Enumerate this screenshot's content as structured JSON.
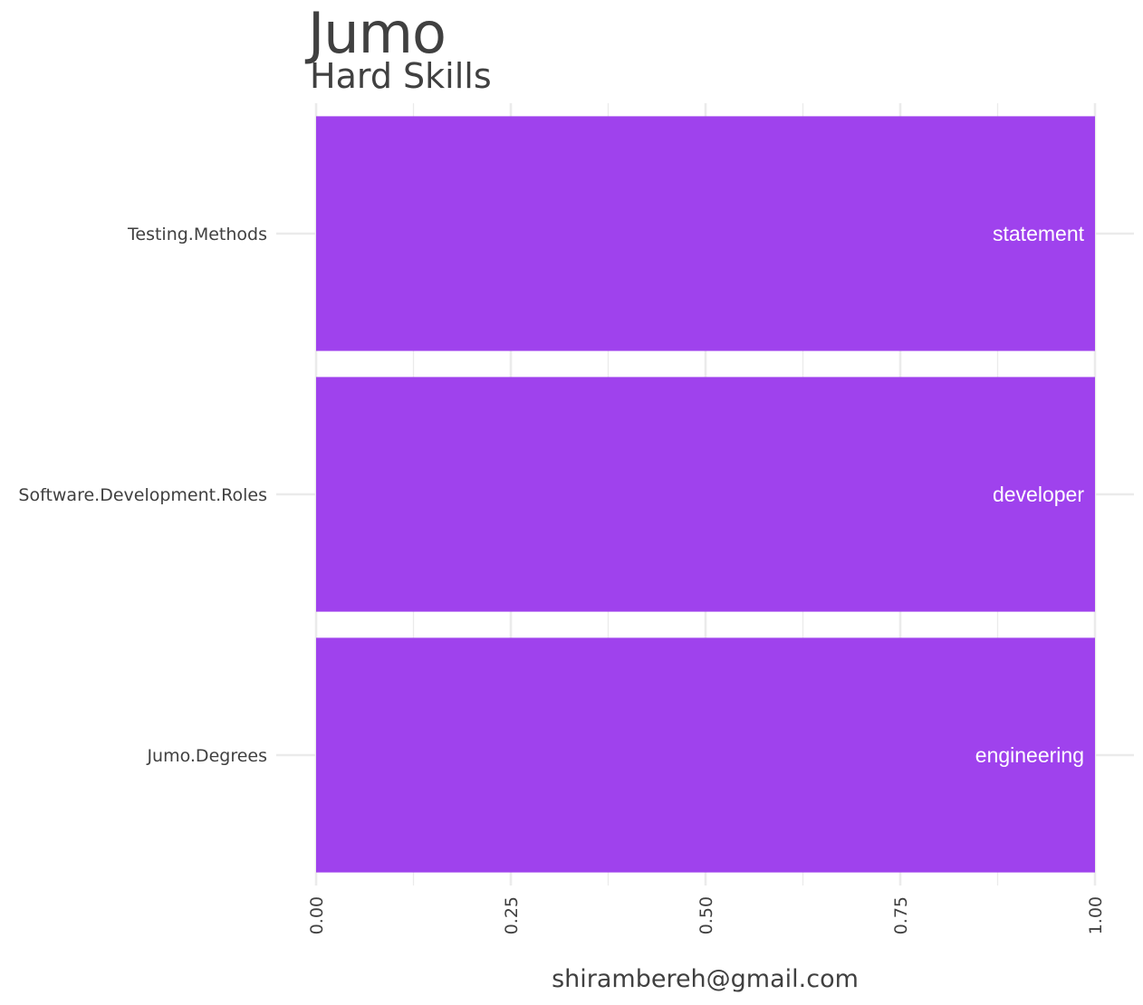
{
  "title": "Jumo",
  "subtitle": "Hard Skills",
  "caption": "shirambereh@gmail.com",
  "colors": {
    "bar": "#9f42ed",
    "label": "#ffffff",
    "grid": "#ebebeb",
    "text": "#404040"
  },
  "chart_data": {
    "type": "bar",
    "orientation": "horizontal",
    "categories": [
      "Jumo.Degrees",
      "Software.Development.Roles",
      "Testing.Methods"
    ],
    "values": [
      1,
      1,
      1
    ],
    "bar_labels": [
      "engineering",
      "developer",
      "statement"
    ],
    "xlim": [
      0,
      1
    ],
    "xticks": [
      0,
      0.25,
      0.5,
      0.75,
      1
    ],
    "xtick_labels": [
      "0.00",
      "0.25",
      "0.50",
      "0.75",
      "1.00"
    ],
    "xlabel": "",
    "ylabel": "",
    "grid": true,
    "legend": "none"
  }
}
